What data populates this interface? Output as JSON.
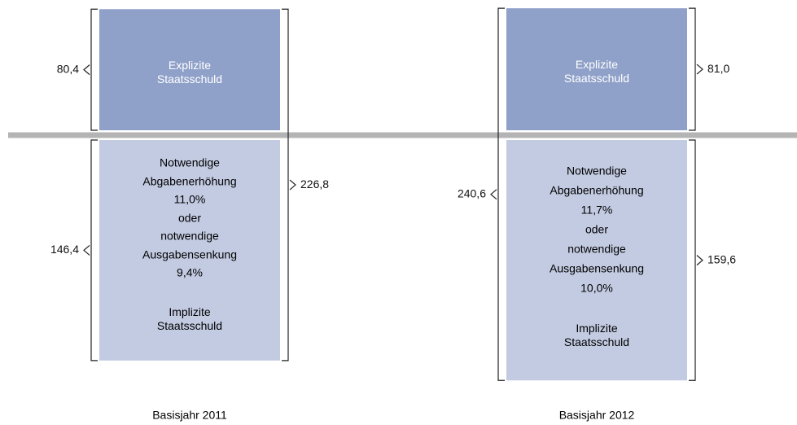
{
  "chart_data": {
    "type": "split-stacked-bar",
    "categories": [
      "Basisjahr 2011",
      "Basisjahr 2012"
    ],
    "series": [
      {
        "name": "Explizite Staatsschuld",
        "color": "#8fa0c9",
        "values": [
          80.4,
          81.0
        ],
        "value_labels": [
          "80,4",
          "81,0"
        ]
      },
      {
        "name": "Implizite Staatsschuld",
        "color": "#c3cbe2",
        "values": [
          146.4,
          159.6
        ],
        "value_labels": [
          "146,4",
          "159,6"
        ],
        "notes": [
          [
            "Notwendige",
            "Abgabenerhöhung",
            "11,0%",
            "oder",
            "notwendige",
            "Ausgabensenkung",
            "9,4%"
          ],
          [
            "Notwendige",
            "Abgabenerhöhung",
            "11,7%",
            "oder",
            "notwendige",
            "Ausgabensenkung",
            "10,0%"
          ]
        ]
      }
    ],
    "totals": [
      226.8,
      240.6
    ],
    "total_labels": [
      "226,8",
      "240,6"
    ],
    "baseline_color": "#b4b4b4"
  }
}
